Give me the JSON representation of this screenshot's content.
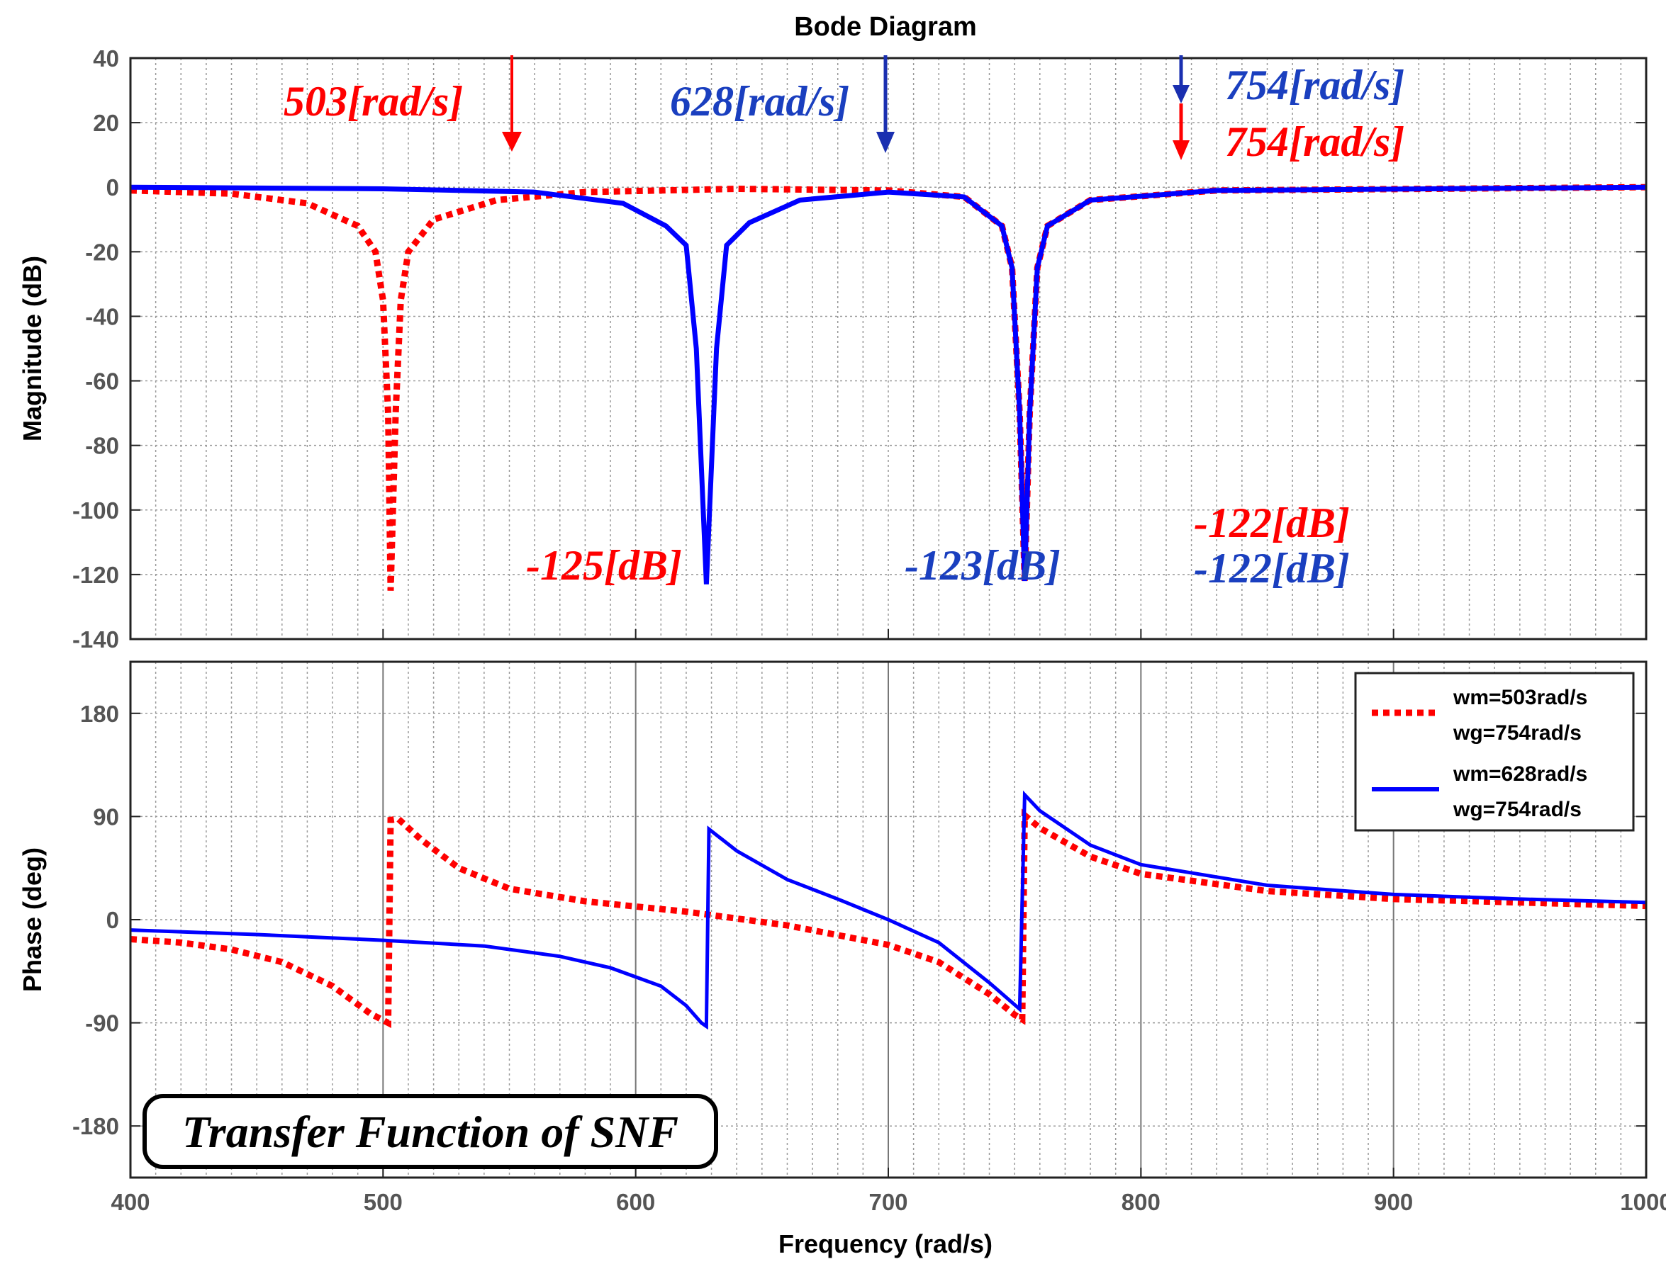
{
  "chart_data": [
    {
      "type": "line",
      "title": "Bode Diagram",
      "xlabel": "",
      "ylabel": "Magnitude (dB)",
      "xlim": [
        400,
        1000
      ],
      "ylim": [
        -140,
        40
      ],
      "yticks": [
        "40",
        "20",
        "0",
        "-20",
        "-40",
        "-60",
        "-80",
        "-100",
        "-120",
        "-140"
      ],
      "series": [
        {
          "name": "wm=503rad/s wg=754rad/s",
          "style": "dotted",
          "color": "#ff0000",
          "points": [
            [
              400,
              -1
            ],
            [
              440,
              -2
            ],
            [
              470,
              -5
            ],
            [
              490,
              -12
            ],
            [
              497,
              -20
            ],
            [
              500,
              -35
            ],
            [
              502,
              -70
            ],
            [
              503,
              -125
            ],
            [
              505,
              -70
            ],
            [
              507,
              -35
            ],
            [
              510,
              -20
            ],
            [
              520,
              -10
            ],
            [
              545,
              -4
            ],
            [
              580,
              -1.5
            ],
            [
              640,
              -0.5
            ],
            [
              700,
              -1
            ],
            [
              730,
              -3
            ],
            [
              745,
              -12
            ],
            [
              749,
              -25
            ],
            [
              752,
              -70
            ],
            [
              754,
              -122
            ],
            [
              756,
              -70
            ],
            [
              759,
              -25
            ],
            [
              763,
              -12
            ],
            [
              780,
              -4
            ],
            [
              830,
              -1
            ],
            [
              1000,
              0
            ]
          ]
        },
        {
          "name": "wm=628rad/s wg=754rad/s",
          "style": "solid",
          "color": "#0000ff",
          "points": [
            [
              400,
              0
            ],
            [
              500,
              -0.5
            ],
            [
              560,
              -1.5
            ],
            [
              595,
              -5
            ],
            [
              612,
              -12
            ],
            [
              620,
              -18
            ],
            [
              624,
              -50
            ],
            [
              628,
              -123
            ],
            [
              632,
              -50
            ],
            [
              636,
              -18
            ],
            [
              645,
              -11
            ],
            [
              665,
              -4
            ],
            [
              700,
              -1.5
            ],
            [
              730,
              -3
            ],
            [
              745,
              -12
            ],
            [
              749,
              -25
            ],
            [
              752,
              -70
            ],
            [
              754,
              -122
            ],
            [
              756,
              -70
            ],
            [
              759,
              -25
            ],
            [
              763,
              -12
            ],
            [
              780,
              -4
            ],
            [
              830,
              -1
            ],
            [
              1000,
              0
            ]
          ]
        }
      ],
      "annotations": [
        {
          "text": "503[rad/s]",
          "color": "#ff0000"
        },
        {
          "text": "628[rad/s]",
          "color": "#1a3fbf"
        },
        {
          "text": "754[rad/s]",
          "color": "#1a3fbf"
        },
        {
          "text": "754[rad/s]",
          "color": "#ff0000"
        },
        {
          "text": "-125[dB]",
          "color": "#ff0000"
        },
        {
          "text": "-123[dB]",
          "color": "#1a3fbf"
        },
        {
          "text": "-122[dB]",
          "color": "#ff0000"
        },
        {
          "text": "-122[dB]",
          "color": "#1a3fbf"
        }
      ]
    },
    {
      "type": "line",
      "title": "",
      "xlabel": "Frequency  (rad/s)",
      "ylabel": "Phase (deg)",
      "xlim": [
        400,
        1000
      ],
      "ylim": [
        -225,
        225
      ],
      "yticks": [
        "180",
        "90",
        "0",
        "-90",
        "-180"
      ],
      "xticks": [
        "400",
        "500",
        "600",
        "700",
        "800",
        "900",
        "1000"
      ],
      "series": [
        {
          "name": "wm=503rad/s wg=754rad/s",
          "style": "dotted",
          "color": "#ff0000",
          "points": [
            [
              400,
              -17
            ],
            [
              420,
              -20
            ],
            [
              440,
              -26
            ],
            [
              460,
              -37
            ],
            [
              480,
              -58
            ],
            [
              495,
              -82
            ],
            [
              502,
              -90
            ],
            [
              503,
              87
            ],
            [
              506,
              88
            ],
            [
              515,
              70
            ],
            [
              530,
              45
            ],
            [
              550,
              27
            ],
            [
              580,
              16
            ],
            [
              620,
              7
            ],
            [
              660,
              -5
            ],
            [
              700,
              -22
            ],
            [
              720,
              -37
            ],
            [
              740,
              -65
            ],
            [
              750,
              -83
            ],
            [
              753,
              -87
            ],
            [
              754,
              91
            ],
            [
              760,
              80
            ],
            [
              780,
              55
            ],
            [
              800,
              40
            ],
            [
              850,
              25
            ],
            [
              900,
              18
            ],
            [
              1000,
              12
            ]
          ]
        },
        {
          "name": "wm=628rad/s wg=754rad/s",
          "style": "solid",
          "color": "#0000ff",
          "points": [
            [
              400,
              -9
            ],
            [
              450,
              -13
            ],
            [
              500,
              -18
            ],
            [
              540,
              -23
            ],
            [
              570,
              -32
            ],
            [
              590,
              -42
            ],
            [
              610,
              -58
            ],
            [
              620,
              -75
            ],
            [
              626,
              -90
            ],
            [
              628,
              -93
            ],
            [
              629,
              79
            ],
            [
              640,
              60
            ],
            [
              660,
              35
            ],
            [
              680,
              18
            ],
            [
              700,
              0
            ],
            [
              720,
              -20
            ],
            [
              740,
              -55
            ],
            [
              752,
              -78
            ],
            [
              754,
              109
            ],
            [
              760,
              95
            ],
            [
              780,
              65
            ],
            [
              800,
              48
            ],
            [
              850,
              30
            ],
            [
              900,
              22
            ],
            [
              950,
              18
            ],
            [
              1000,
              15
            ]
          ]
        }
      ],
      "legend": {
        "position": "top-right",
        "entries": [
          {
            "line1": "wm=503rad/s",
            "line2": "wg=754rad/s",
            "style": "dotted",
            "color": "#ff0000"
          },
          {
            "line1": "wm=628rad/s",
            "line2": "wg=754rad/s",
            "style": "solid",
            "color": "#0000ff"
          }
        ]
      },
      "caption_box": "Transfer Function of SNF"
    }
  ]
}
